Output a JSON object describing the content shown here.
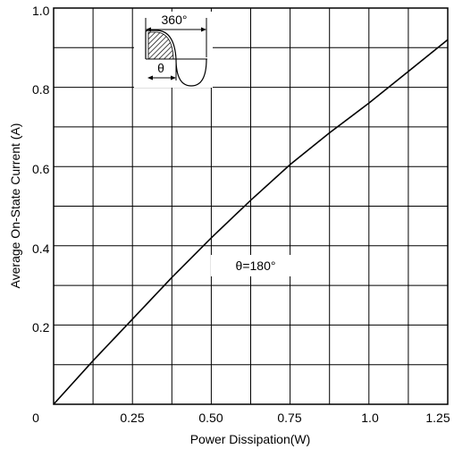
{
  "chart_data": {
    "type": "line",
    "title": "",
    "xlabel": "Power Dissipation(W)",
    "ylabel": "Average On-State Current (A)",
    "xlim": [
      0,
      1.25
    ],
    "ylim": [
      0,
      1.0
    ],
    "x_tick_labels": [
      "0",
      "0.25",
      "0.50",
      "0.75",
      "1.0",
      "1.25"
    ],
    "y_tick_labels": [
      "0.2",
      "0.4",
      "0.6",
      "0.8",
      "1.0"
    ],
    "grid": true,
    "series": [
      {
        "name": "θ=180°",
        "x": [
          0,
          0.125,
          0.25,
          0.375,
          0.5,
          0.625,
          0.75,
          0.875,
          1.0,
          1.125,
          1.25
        ],
        "y": [
          0,
          0.11,
          0.215,
          0.32,
          0.42,
          0.515,
          0.605,
          0.685,
          0.76,
          0.84,
          0.92
        ]
      }
    ],
    "annotations": {
      "curve_label": "θ=180°",
      "inset_period": "360°",
      "inset_angle": "θ"
    }
  }
}
